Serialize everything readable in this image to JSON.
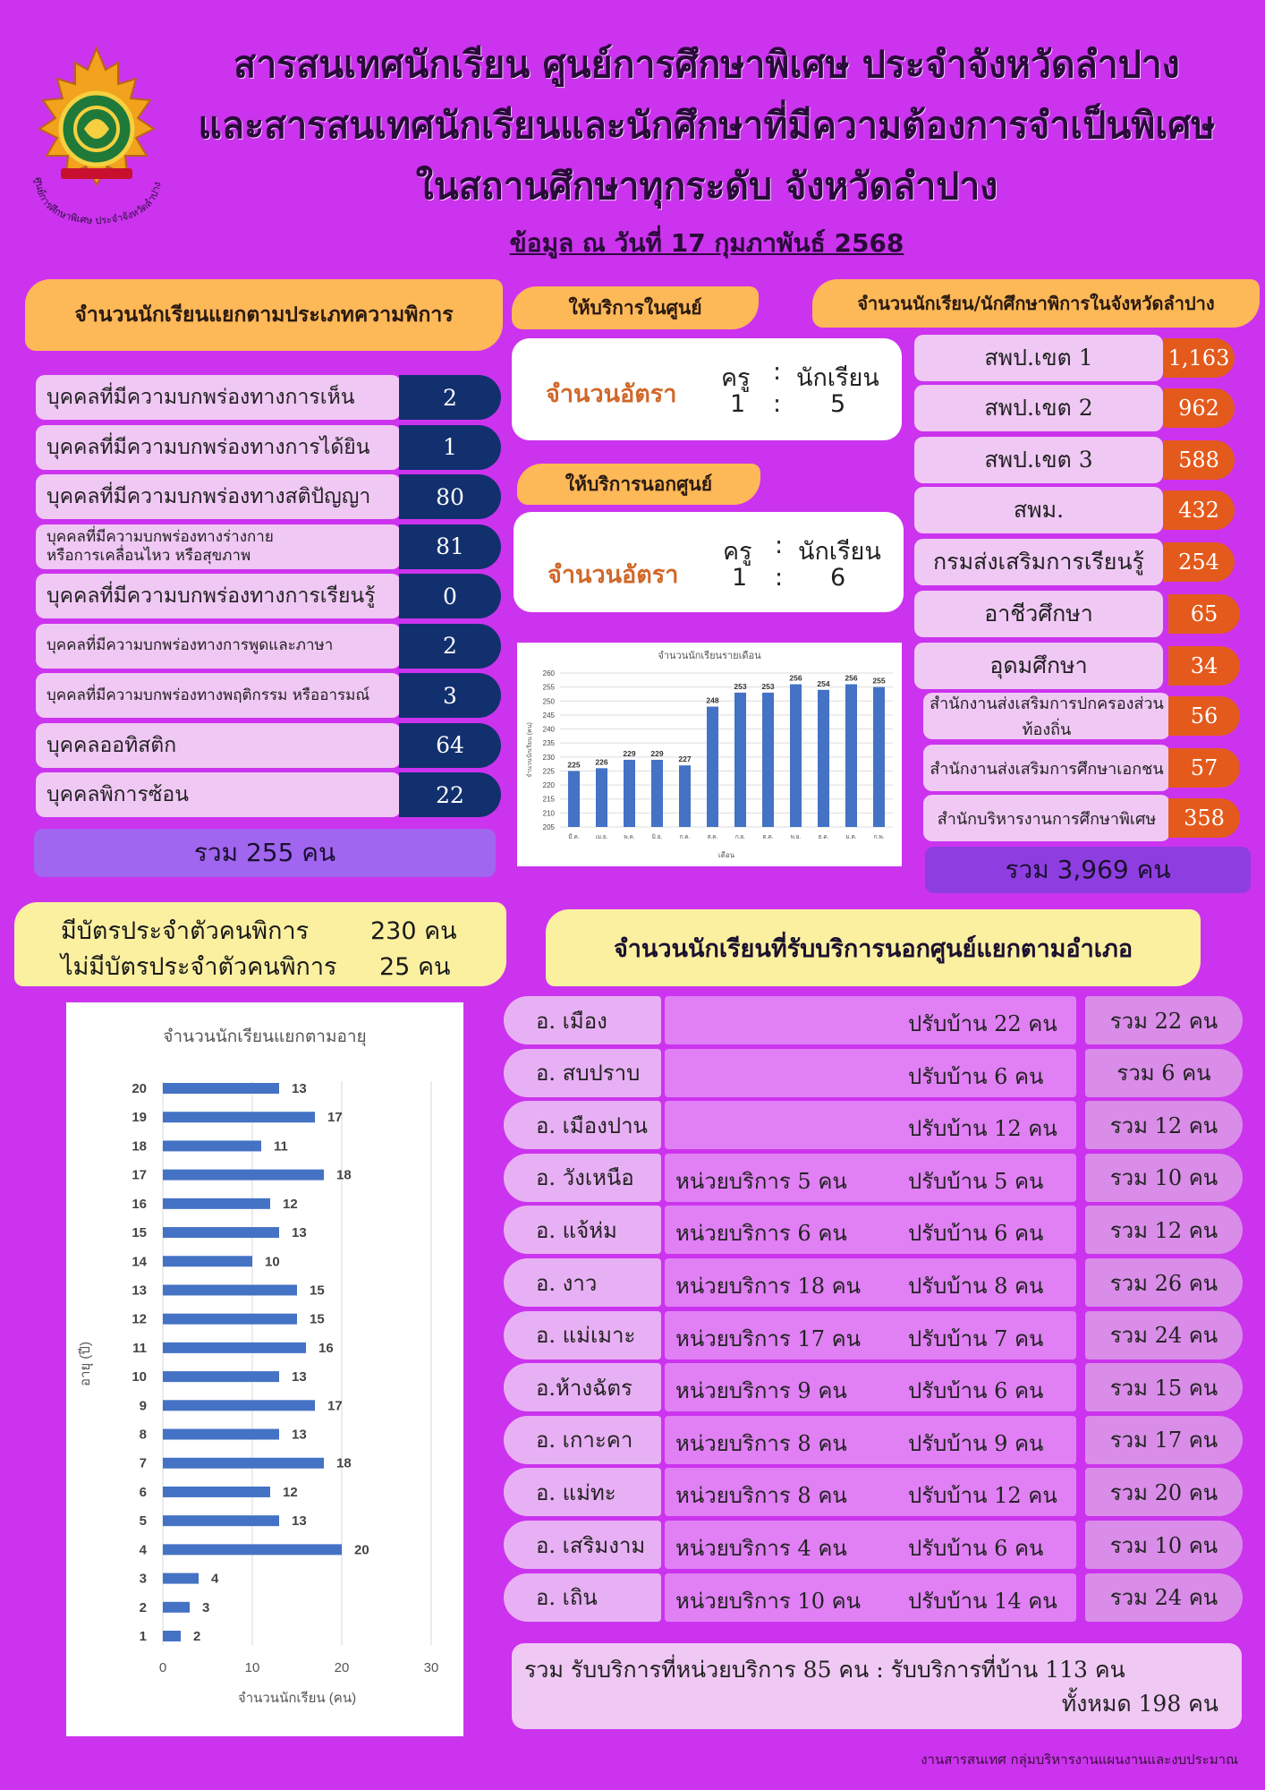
{
  "header": {
    "title_lines": [
      "สารสนเทศนักเรียน ศูนย์การศึกษาพิเศษ ประจำจังหวัดลำปาง",
      "และสารสนเทศนักเรียนและนักศึกษาที่มีความต้องการจำเป็นพิเศษ",
      "ในสถานศึกษาทุกระดับ จังหวัดลำปาง"
    ],
    "date": "ข้อมูล ณ วันที่ 17 กุมภาพันธ์ 2568",
    "logo_text": "ศูนย์การศึกษาพิเศษ ประจำจังหวัดลำปาง"
  },
  "disability": {
    "heading": "จำนวนนักเรียนแยกตามประเภทความพิการ",
    "items": [
      {
        "label": "บุคคลที่มีความบกพร่องทางการเห็น",
        "value": "2"
      },
      {
        "label": "บุคคลที่มีความบกพร่องทางการได้ยิน",
        "value": "1"
      },
      {
        "label": "บุคคลที่มีความบกพร่องทางสติปัญญา",
        "value": "80"
      },
      {
        "label": "บุคคลที่มีความบกพร่องทางร่างกาย\nหรือการเคลื่อนไหว หรือสุขภาพ",
        "value": "81"
      },
      {
        "label": "บุคคลที่มีความบกพร่องทางการเรียนรู้",
        "value": "0"
      },
      {
        "label": "บุคคลที่มีความบกพร่องทางการพูดและภาษา",
        "value": "2"
      },
      {
        "label": "บุคคลที่มีความบกพร่องทางพฤติกรรม หรืออารมณ์",
        "value": "3"
      },
      {
        "label": "บุคคลออทิสติก",
        "value": "64"
      },
      {
        "label": "บุคคลพิการซ้อน",
        "value": "22"
      }
    ],
    "total": "รวม   255 คน"
  },
  "cards": {
    "has_card": "มีบัตรประจำตัวคนพิการ",
    "has_card_value": "230 คน",
    "no_card": "ไม่มีบัตรประจำตัวคนพิการ",
    "no_card_value": "25  คน"
  },
  "center": {
    "in_heading": "ให้บริการในศูนย์",
    "out_heading": "ให้บริการนอกศูนย์",
    "ratio_label": "จำนวนอัตรา",
    "teacher": "ครู",
    "colon": ":",
    "student": "นักเรียน",
    "in_teacher": "1",
    "in_student": "5",
    "out_teacher": "1",
    "out_student": "6"
  },
  "province": {
    "heading": "จำนวนนักเรียน/นักศึกษาพิการในจังหวัดลำปาง",
    "items": [
      {
        "label": "สพป.เขต 1",
        "value": "1,163"
      },
      {
        "label": "สพป.เขต 2",
        "value": "962"
      },
      {
        "label": "สพป.เขต 3",
        "value": "588"
      },
      {
        "label": "สพม.",
        "value": "432"
      },
      {
        "label": "กรมส่งเสริมการเรียนรู้",
        "value": "254"
      },
      {
        "label": "อาชีวศึกษา",
        "value": "65"
      },
      {
        "label": "อุดมศึกษา",
        "value": "34"
      },
      {
        "label": "สำนักงานส่งเสริมการปกครองส่วนท้องถิ่น",
        "value": "56"
      },
      {
        "label": "สำนักงานส่งเสริมการศึกษาเอกชน",
        "value": "57"
      },
      {
        "label": "สำนักบริหารงานการศึกษาพิเศษ",
        "value": "358"
      }
    ],
    "total": "รวม 3,969 คน"
  },
  "district": {
    "heading": "จำนวนนักเรียนที่รับบริการนอกศูนย์แยกตามอำเภอ",
    "rows": [
      {
        "name": "อ. เมือง",
        "unit": "",
        "home": "ปรับบ้าน 22 คน",
        "total": "รวม   22 คน"
      },
      {
        "name": "อ. สบปราบ",
        "unit": "",
        "home": "ปรับบ้าน 6 คน",
        "total": "รวม   6 คน"
      },
      {
        "name": "อ. เมืองปาน",
        "unit": "",
        "home": "ปรับบ้าน 12 คน",
        "total": "รวม   12 คน"
      },
      {
        "name": "อ. วังเหนือ",
        "unit": "หน่วยบริการ 5 คน",
        "home": "ปรับบ้าน 5 คน",
        "total": "รวม   10 คน"
      },
      {
        "name": "อ. แจ้ห่ม",
        "unit": "หน่วยบริการ  6 คน",
        "home": "ปรับบ้าน  6 คน",
        "total": "รวม   12 คน"
      },
      {
        "name": "อ. งาว",
        "unit": "หน่วยบริการ 18 คน",
        "home": "ปรับบ้าน  8 คน",
        "total": "รวม   26 คน"
      },
      {
        "name": "อ. แม่เมาะ",
        "unit": "หน่วยบริการ 17 คน",
        "home": "ปรับบ้าน  7 คน",
        "total": "รวม   24 คน"
      },
      {
        "name": "อ.ห้างฉัตร",
        "unit": "หน่วยบริการ  9 คน",
        "home": "ปรับบ้าน  6 คน",
        "total": "รวม   15 คน"
      },
      {
        "name": "อ. เกาะคา",
        "unit": "หน่วยบริการ  8 คน",
        "home": "ปรับบ้าน   9 คน",
        "total": "รวม   17 คน"
      },
      {
        "name": "อ. แม่ทะ",
        "unit": "หน่วยบริการ 8 คน",
        "home": "ปรับบ้าน 12 คน",
        "total": "รวม  20 คน"
      },
      {
        "name": "อ. เสริมงาม",
        "unit": "หน่วยบริการ 4 คน",
        "home": "ปรับบ้าน  6 คน",
        "total": "รวม   10 คน"
      },
      {
        "name": "อ. เถิน",
        "unit": "หน่วยบริการ 10 คน",
        "home": "ปรับบ้าน  14 คน",
        "total": "รวม   24 คน"
      }
    ],
    "summary_line1": "รวม รับบริการที่หน่วยบริการ 85 คน : รับบริการที่บ้าน 113 คน",
    "summary_line2": "ทั้งหมด 198 คน"
  },
  "footer": "งานสารสนเทศ กลุ่มบริหารงานแผนงานและงบประมาณ",
  "colors": {
    "background": "#cc33ee",
    "bar": "#4472c4",
    "navy_value": "#12306e",
    "orange_value": "#e45a1c"
  },
  "chart_data": [
    {
      "type": "bar",
      "title": "จำนวนนักเรียนรายเดือน",
      "xlabel": "เดือน",
      "ylabel": "จำนวนนักเรียน (คน)",
      "categories": [
        "มี.ค.",
        "เม.ย.",
        "พ.ค.",
        "มิ.ย.",
        "ก.ค.",
        "ส.ค.",
        "ก.ย.",
        "ต.ค.",
        "พ.ย.",
        "ธ.ค.",
        "ม.ค.",
        "ก.พ."
      ],
      "values": [
        225,
        226,
        229,
        229,
        227,
        248,
        253,
        253,
        256,
        254,
        256,
        255
      ],
      "ylim": [
        205,
        260
      ],
      "yticks": [
        205,
        210,
        215,
        220,
        225,
        230,
        235,
        240,
        245,
        250,
        255,
        260
      ],
      "grid": true,
      "legend": "none"
    },
    {
      "type": "bar",
      "orientation": "horizontal",
      "title": "จำนวนนักเรียนแยกตามอายุ",
      "xlabel": "จำนวนนักเรียน (คน)",
      "ylabel": "อายุ (ปี)",
      "categories": [
        "1",
        "2",
        "3",
        "4",
        "5",
        "6",
        "7",
        "8",
        "9",
        "10",
        "11",
        "12",
        "13",
        "14",
        "15",
        "16",
        "17",
        "18",
        "19",
        "20"
      ],
      "values": [
        2,
        3,
        4,
        20,
        13,
        12,
        18,
        13,
        17,
        13,
        16,
        15,
        15,
        10,
        13,
        12,
        18,
        11,
        17,
        13
      ],
      "xlim": [
        0,
        30
      ],
      "xticks": [
        0,
        10,
        20,
        30
      ],
      "grid": true,
      "legend": "none"
    }
  ]
}
